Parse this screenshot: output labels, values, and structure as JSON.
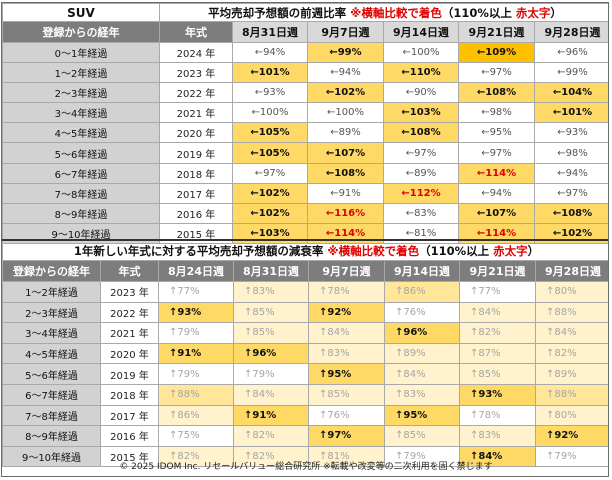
{
  "table1": {
    "corner": "SUV",
    "title_main": "平均売却予想額の前週比率",
    "title_note": "※横軸比較で着色",
    "title_paren": "（110%以上",
    "title_paren_red": "赤太字",
    "title_paren_close": "）",
    "head_label": "登録からの経年",
    "head_year": "年式",
    "weeks": [
      "8月31日週",
      "9月7日週",
      "9月14日週",
      "9月21日週",
      "9月28日週"
    ],
    "rows": [
      {
        "label": "0～1年経過",
        "year": "2024 年",
        "values": [
          "←94%",
          "←99%",
          "←100%",
          "←109%",
          "←96%"
        ],
        "styles": [
          "w",
          "y",
          "w",
          "s",
          "w"
        ]
      },
      {
        "label": "1～2年経過",
        "year": "2023 年",
        "values": [
          "←101%",
          "←94%",
          "←110%",
          "←97%",
          "←99%"
        ],
        "styles": [
          "y",
          "w",
          "y",
          "w",
          "w"
        ]
      },
      {
        "label": "2～3年経過",
        "year": "2022 年",
        "values": [
          "←93%",
          "←102%",
          "←90%",
          "←108%",
          "←104%"
        ],
        "styles": [
          "w",
          "y",
          "w",
          "y",
          "y"
        ]
      },
      {
        "label": "3～4年経過",
        "year": "2021 年",
        "values": [
          "←100%",
          "←100%",
          "←103%",
          "←98%",
          "←101%"
        ],
        "styles": [
          "w",
          "w",
          "y",
          "w",
          "y"
        ]
      },
      {
        "label": "4～5年経過",
        "year": "2020 年",
        "values": [
          "←105%",
          "←89%",
          "←108%",
          "←95%",
          "←93%"
        ],
        "styles": [
          "y",
          "w",
          "y",
          "w",
          "w"
        ]
      },
      {
        "label": "5～6年経過",
        "year": "2019 年",
        "values": [
          "←105%",
          "←107%",
          "←97%",
          "←97%",
          "←98%"
        ],
        "styles": [
          "y",
          "y",
          "w",
          "w",
          "w"
        ]
      },
      {
        "label": "6～7年経過",
        "year": "2018 年",
        "values": [
          "←97%",
          "←108%",
          "←89%",
          "←114%",
          "←94%"
        ],
        "styles": [
          "w",
          "y",
          "w",
          "r",
          "w"
        ]
      },
      {
        "label": "7～8年経過",
        "year": "2017 年",
        "values": [
          "←102%",
          "←91%",
          "←112%",
          "←94%",
          "←97%"
        ],
        "styles": [
          "y",
          "w",
          "r",
          "w",
          "w"
        ]
      },
      {
        "label": "8～9年経過",
        "year": "2016 年",
        "values": [
          "←102%",
          "←116%",
          "←83%",
          "←107%",
          "←108%"
        ],
        "styles": [
          "y",
          "r",
          "w",
          "y",
          "y"
        ]
      },
      {
        "label": "9～10年経過",
        "year": "2015 年",
        "values": [
          "←103%",
          "←114%",
          "←81%",
          "←114%",
          "←102%"
        ],
        "styles": [
          "y",
          "r",
          "w",
          "r",
          "y"
        ]
      }
    ]
  },
  "table2": {
    "title_main": "1年新しい年式に対する平均売却予想額の減衰率",
    "title_note": "※横軸比較で着色",
    "title_paren": "（110%以上",
    "title_paren_red": "赤太字",
    "title_paren_close": "）",
    "head_label": "登録からの経年",
    "head_year": "年式",
    "weeks": [
      "8月24日週",
      "8月31日週",
      "9月7日週",
      "9月14日週",
      "9月21日週",
      "9月28日週"
    ],
    "rows": [
      {
        "label": "1～2年経過",
        "year": "2023 年",
        "values": [
          "↑77%",
          "↑83%",
          "↑78%",
          "↑86%",
          "↑77%",
          "↑80%"
        ],
        "styles": [
          "wt",
          "pl",
          "pl",
          "ly",
          "wt",
          "pl"
        ]
      },
      {
        "label": "2～3年経過",
        "year": "2022 年",
        "values": [
          "↑93%",
          "↑85%",
          "↑92%",
          "↑76%",
          "↑84%",
          "↑88%"
        ],
        "styles": [
          "md",
          "pl",
          "md",
          "wt",
          "pl",
          "pl"
        ]
      },
      {
        "label": "3～4年経過",
        "year": "2021 年",
        "values": [
          "↑79%",
          "↑85%",
          "↑84%",
          "↑96%",
          "↑82%",
          "↑84%"
        ],
        "styles": [
          "wt",
          "pl",
          "pl",
          "md",
          "pl",
          "pl"
        ]
      },
      {
        "label": "4～5年経過",
        "year": "2020 年",
        "values": [
          "↑91%",
          "↑96%",
          "↑83%",
          "↑89%",
          "↑87%",
          "↑82%"
        ],
        "styles": [
          "md",
          "md",
          "pl",
          "pl",
          "pl",
          "pl"
        ]
      },
      {
        "label": "5～6年経過",
        "year": "2019 年",
        "values": [
          "↑79%",
          "↑79%",
          "↑95%",
          "↑84%",
          "↑85%",
          "↑89%"
        ],
        "styles": [
          "wt",
          "wt",
          "md",
          "pl",
          "pl",
          "pl"
        ]
      },
      {
        "label": "6～7年経過",
        "year": "2018 年",
        "values": [
          "↑88%",
          "↑84%",
          "↑85%",
          "↑83%",
          "↑93%",
          "↑88%"
        ],
        "styles": [
          "ly",
          "pl",
          "pl",
          "pl",
          "md",
          "ly"
        ]
      },
      {
        "label": "7～8年経過",
        "year": "2017 年",
        "values": [
          "↑86%",
          "↑91%",
          "↑76%",
          "↑95%",
          "↑78%",
          "↑80%"
        ],
        "styles": [
          "pl",
          "md",
          "wt",
          "md",
          "wt",
          "pl"
        ]
      },
      {
        "label": "8～9年経過",
        "year": "2016 年",
        "values": [
          "↑75%",
          "↑82%",
          "↑97%",
          "↑85%",
          "↑83%",
          "↑92%"
        ],
        "styles": [
          "wt",
          "pl",
          "md",
          "pl",
          "pl",
          "md"
        ]
      },
      {
        "label": "9～10年経過",
        "year": "2015 年",
        "values": [
          "↑82%",
          "↑82%",
          "↑81%",
          "↑79%",
          "↑84%",
          "↑79%"
        ],
        "styles": [
          "pl",
          "pl",
          "pl",
          "wt",
          "md",
          "wt"
        ]
      }
    ]
  },
  "footer": "© 2025 IDOM Inc. リセールバリュー総合研究所 ※転載や改変等の二次利用を固く禁じます",
  "chart_data": [
    {
      "type": "table",
      "title": "平均売却予想額の前週比率",
      "columns": [
        "登録からの経年",
        "年式",
        "8月31日週",
        "9月7日週",
        "9月14日週",
        "9月21日週",
        "9月28日週"
      ],
      "rows": [
        [
          "0～1年経過",
          "2024 年",
          "94%",
          "99%",
          "100%",
          "109%",
          "96%"
        ],
        [
          "1～2年経過",
          "2023 年",
          "101%",
          "94%",
          "110%",
          "97%",
          "99%"
        ],
        [
          "2～3年経過",
          "2022 年",
          "93%",
          "102%",
          "90%",
          "108%",
          "104%"
        ],
        [
          "3～4年経過",
          "2021 年",
          "100%",
          "100%",
          "103%",
          "98%",
          "101%"
        ],
        [
          "4～5年経過",
          "2020 年",
          "105%",
          "89%",
          "108%",
          "95%",
          "93%"
        ],
        [
          "5～6年経過",
          "2019 年",
          "105%",
          "107%",
          "97%",
          "97%",
          "98%"
        ],
        [
          "6～7年経過",
          "2018 年",
          "97%",
          "108%",
          "89%",
          "114%",
          "94%"
        ],
        [
          "7～8年経過",
          "2017 年",
          "102%",
          "91%",
          "112%",
          "94%",
          "97%"
        ],
        [
          "8～9年経過",
          "2016 年",
          "102%",
          "116%",
          "83%",
          "107%",
          "108%"
        ],
        [
          "9～10年経過",
          "2015 年",
          "103%",
          "114%",
          "81%",
          "114%",
          "102%"
        ]
      ]
    },
    {
      "type": "table",
      "title": "1年新しい年式に対する平均売却予想額の減衰率",
      "columns": [
        "登録からの経年",
        "年式",
        "8月24日週",
        "8月31日週",
        "9月7日週",
        "9月14日週",
        "9月21日週",
        "9月28日週"
      ],
      "rows": [
        [
          "1～2年経過",
          "2023 年",
          "77%",
          "83%",
          "78%",
          "86%",
          "77%",
          "80%"
        ],
        [
          "2～3年経過",
          "2022 年",
          "93%",
          "85%",
          "92%",
          "76%",
          "84%",
          "88%"
        ],
        [
          "3～4年経過",
          "2021 年",
          "79%",
          "85%",
          "84%",
          "96%",
          "82%",
          "84%"
        ],
        [
          "4～5年経過",
          "2020 年",
          "91%",
          "96%",
          "83%",
          "89%",
          "87%",
          "82%"
        ],
        [
          "5～6年経過",
          "2019 年",
          "79%",
          "79%",
          "95%",
          "84%",
          "85%",
          "89%"
        ],
        [
          "6～7年経過",
          "2018 年",
          "88%",
          "84%",
          "85%",
          "83%",
          "93%",
          "88%"
        ],
        [
          "7～8年経過",
          "2017 年",
          "86%",
          "91%",
          "76%",
          "95%",
          "78%",
          "80%"
        ],
        [
          "8～9年経過",
          "2016 年",
          "75%",
          "82%",
          "97%",
          "85%",
          "83%",
          "92%"
        ],
        [
          "9～10年経過",
          "2015 年",
          "82%",
          "82%",
          "81%",
          "79%",
          "84%",
          "79%"
        ]
      ]
    }
  ],
  "colors": {
    "highlight_strong": "#ffc000",
    "highlight_mid": "#ffd966",
    "highlight_pale": "#fff2cc",
    "alert_red": "#e00000",
    "header_dark": "#7d7d7d"
  }
}
